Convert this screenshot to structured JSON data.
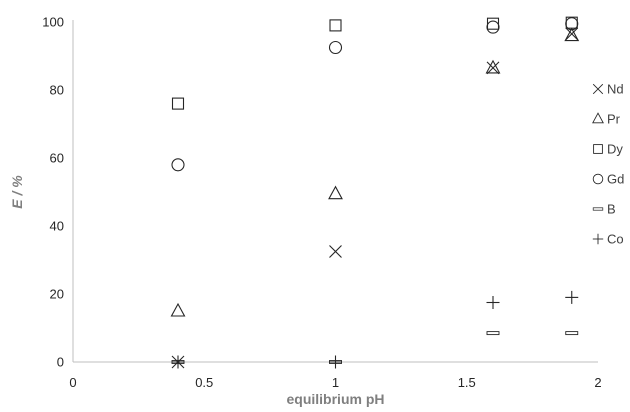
{
  "chart_data": {
    "type": "scatter",
    "xlabel": "equilibrium pH",
    "ylabel": "E / %",
    "xlim": [
      0,
      2
    ],
    "ylim": [
      0,
      100
    ],
    "x_ticks": [
      "0",
      "0.5",
      "1",
      "1.5",
      "2"
    ],
    "x_tick_values": [
      0,
      0.5,
      1,
      1.5,
      2
    ],
    "y_ticks": [
      "0",
      "20",
      "40",
      "60",
      "80",
      "100"
    ],
    "y_tick_values": [
      0,
      20,
      40,
      60,
      80,
      100
    ],
    "grid": false,
    "legend_position": "right",
    "series": [
      {
        "name": "Nd",
        "marker": "x",
        "x": [
          0.4,
          1.0,
          1.6,
          1.9
        ],
        "y": [
          0,
          32.5,
          86.5,
          96.5
        ]
      },
      {
        "name": "Pr",
        "marker": "triangle",
        "x": [
          0.4,
          1.0,
          1.6,
          1.9
        ],
        "y": [
          15,
          49.5,
          86.5,
          96
        ]
      },
      {
        "name": "Dy",
        "marker": "square",
        "x": [
          0.4,
          1.0,
          1.6,
          1.9
        ],
        "y": [
          76,
          99,
          99.5,
          99.8
        ]
      },
      {
        "name": "Gd",
        "marker": "circle",
        "x": [
          0.4,
          1.0,
          1.6,
          1.9
        ],
        "y": [
          58,
          92.5,
          98.5,
          99.5
        ]
      },
      {
        "name": "B",
        "marker": "dash",
        "x": [
          0.4,
          1.0,
          1.6,
          1.9
        ],
        "y": [
          0,
          0,
          8.5,
          8.5
        ]
      },
      {
        "name": "Co",
        "marker": "plus",
        "x": [
          0.4,
          1.0,
          1.6,
          1.9
        ],
        "y": [
          0,
          0,
          17.5,
          19
        ]
      }
    ]
  }
}
